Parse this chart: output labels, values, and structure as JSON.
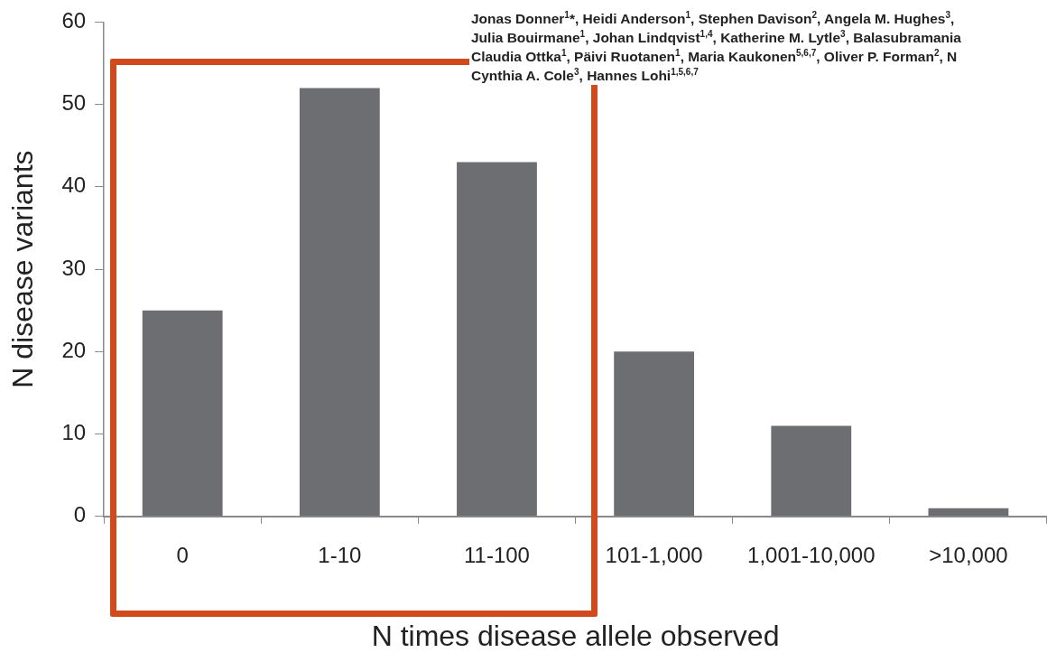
{
  "chart_data": {
    "type": "bar",
    "xlabel": "N times disease allele observed",
    "ylabel": "N disease variants",
    "categories": [
      "0",
      "1-10",
      "11-100",
      "101-1,000",
      "1,001-10,000",
      ">10,000"
    ],
    "values": [
      25,
      52,
      43,
      20,
      11,
      1
    ],
    "color": "#6d6e71",
    "ylim": [
      0,
      60
    ],
    "yticks": [
      0,
      10,
      20,
      30,
      40,
      50,
      60
    ],
    "grid": false,
    "legend": false,
    "annotations": [
      "Jonas Donner$^{1}$*, Heidi Anderson$^{1}$, Stephen Davison$^{2}$, Angela M. Hughes$^{3}$,",
      "Julia Bouirmane$^{1}$, Johan Lindqvist$^{1,4}$, Katherine M. Lytle$^{3}$, Balasubramania",
      "Claudia Ottka$^{1}$, Päivi Ruotanen$^{1}$, Maria Kaukonen$^{5,6,7}$, Oliver P. Forman$^{2}$, N",
      "Cynthia A. Cole$^{3}$, Hannes Lohi$^{1,5,6,7}$"
    ]
  }
}
